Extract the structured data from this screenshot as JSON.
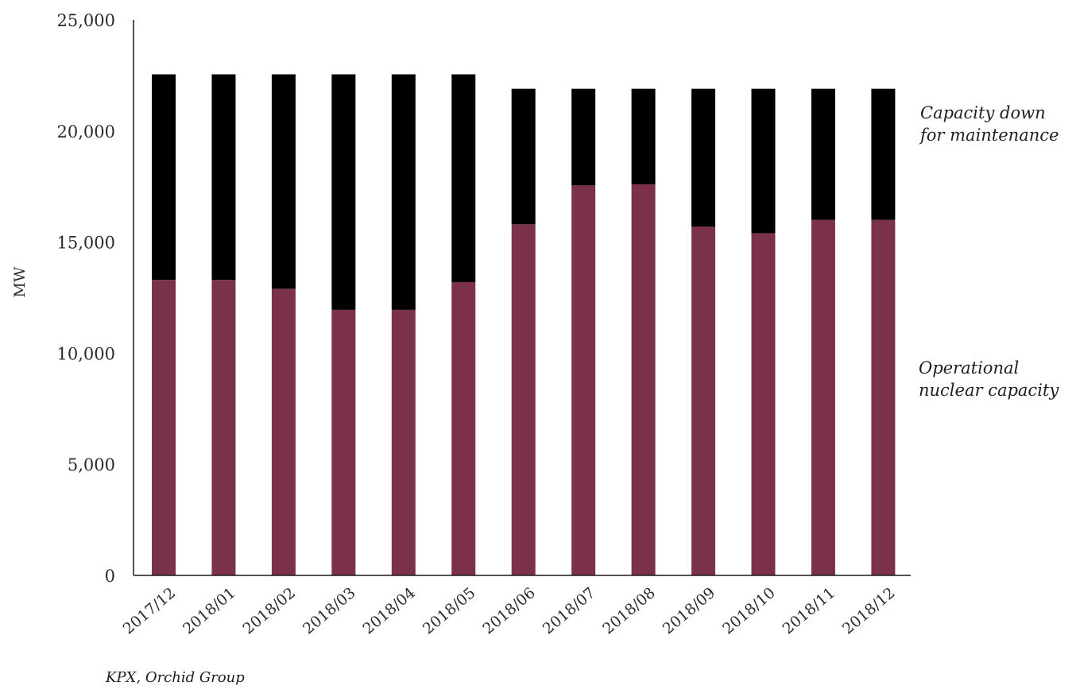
{
  "chart_data": {
    "type": "bar",
    "stacked": true,
    "categories": [
      "2017/12",
      "2018/01",
      "2018/02",
      "2018/03",
      "2018/04",
      "2018/05",
      "2018/06",
      "2018/07",
      "2018/08",
      "2018/09",
      "2018/10",
      "2018/11",
      "2018/12"
    ],
    "series": [
      {
        "name": "Operational nuclear capacity",
        "name_lines": [
          "Operational",
          "nuclear capacity"
        ],
        "color": "#7b314b",
        "values": [
          13300,
          13300,
          12900,
          11950,
          11950,
          13200,
          15800,
          17550,
          17600,
          15700,
          15400,
          16000,
          16000
        ]
      },
      {
        "name": "Capacity down for maintenance",
        "name_lines": [
          "Capacity down",
          "for maintenance"
        ],
        "color": "#000000",
        "values": [
          9250,
          9250,
          9650,
          10600,
          10600,
          9350,
          6100,
          4350,
          4300,
          6200,
          6500,
          5900,
          5900
        ]
      }
    ],
    "ylabel": "MW",
    "xlabel": "",
    "ylim": [
      0,
      25000
    ],
    "yticks": [
      0,
      5000,
      10000,
      15000,
      20000,
      25000
    ],
    "ytick_labels": [
      "0",
      "5,000",
      "10,000",
      "15,000",
      "20,000",
      "25,000"
    ],
    "grid": false,
    "legend": "right, inline labels beside bars"
  },
  "source": "KPX, Orchid Group"
}
